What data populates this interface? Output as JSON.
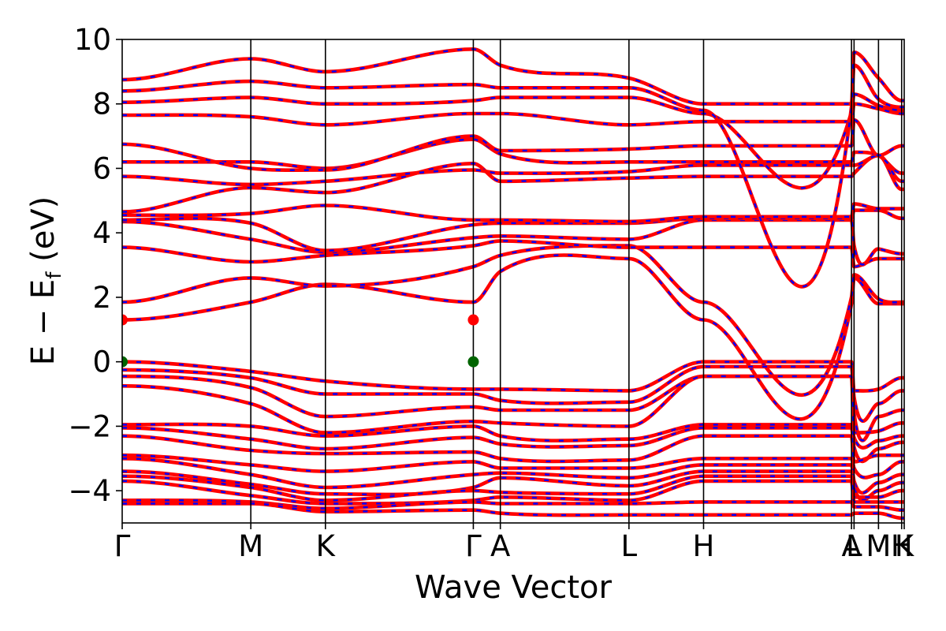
{
  "chart_data": {
    "type": "line",
    "xlabel": "Wave Vector",
    "ylabel": "E − E_f (eV)",
    "ylim": [
      -5,
      10
    ],
    "yticks": [
      -4,
      -2,
      0,
      2,
      4,
      6,
      8,
      10
    ],
    "ytick_labels": [
      "−4",
      "−2",
      "0",
      "2",
      "4",
      "6",
      "8",
      "10"
    ],
    "xlim": [
      0,
      6.08
    ],
    "kpoints": [
      {
        "label": "Γ",
        "x": 0.0
      },
      {
        "label": "M",
        "x": 1.0
      },
      {
        "label": "K",
        "x": 1.58
      },
      {
        "label": "Γ",
        "x": 2.73
      },
      {
        "label": "A",
        "x": 2.94
      },
      {
        "label": "L",
        "x": 3.94
      },
      {
        "label": "H",
        "x": 4.52
      },
      {
        "label": "A",
        "x": 5.67
      },
      {
        "label": "L",
        "x": 5.69
      },
      {
        "label": "M",
        "x": 5.88
      },
      {
        "label": "H",
        "x": 6.06
      },
      {
        "label": "K",
        "x": 6.08
      }
    ],
    "band_colors": {
      "spin_up": "#0000ff",
      "spin_down": "#ff0000"
    },
    "markers": [
      {
        "kind": "cbm",
        "x": 0.0,
        "y": 1.3,
        "color": "#ff0000"
      },
      {
        "kind": "cbm",
        "x": 2.73,
        "y": 1.3,
        "color": "#ff0000"
      },
      {
        "kind": "vbm",
        "x": 0.0,
        "y": 0.0,
        "color": "#006400"
      },
      {
        "kind": "vbm",
        "x": 2.73,
        "y": 0.0,
        "color": "#006400"
      }
    ],
    "series": [
      {
        "values": [
          1.3,
          1.85,
          2.4,
          1.85,
          2.8,
          3.2,
          1.3,
          1.8,
          2.6,
          1.8,
          1.8,
          1.8
        ]
      },
      {
        "values": [
          1.85,
          2.6,
          2.35,
          2.95,
          3.3,
          3.6,
          1.85,
          2.0,
          2.7,
          1.95,
          1.85,
          1.85
        ]
      },
      {
        "values": [
          3.55,
          3.1,
          3.3,
          3.6,
          3.75,
          3.55,
          3.55,
          3.55,
          2.95,
          3.2,
          3.2,
          3.2
        ]
      },
      {
        "values": [
          4.35,
          3.8,
          3.4,
          3.85,
          3.9,
          3.8,
          4.4,
          4.4,
          3.6,
          3.5,
          3.35,
          3.35
        ]
      },
      {
        "values": [
          4.4,
          4.3,
          3.45,
          4.25,
          4.3,
          4.3,
          4.45,
          4.45,
          4.7,
          4.7,
          4.45,
          4.45
        ]
      },
      {
        "values": [
          4.55,
          4.6,
          4.85,
          4.4,
          4.4,
          4.35,
          4.5,
          4.5,
          4.9,
          4.75,
          4.75,
          4.75
        ]
      },
      {
        "values": [
          4.65,
          5.4,
          5.25,
          6.15,
          5.6,
          5.7,
          5.75,
          5.75,
          5.85,
          6.4,
          5.35,
          5.35
        ]
      },
      {
        "values": [
          5.75,
          5.5,
          5.6,
          5.95,
          5.85,
          5.9,
          6.1,
          6.1,
          6.1,
          6.4,
          5.6,
          5.6
        ]
      },
      {
        "values": [
          6.2,
          6.2,
          6.0,
          6.9,
          6.45,
          6.2,
          6.2,
          6.2,
          6.5,
          6.4,
          5.85,
          5.85
        ]
      },
      {
        "values": [
          6.75,
          6.0,
          5.95,
          7.0,
          6.55,
          6.6,
          6.7,
          6.7,
          7.5,
          6.4,
          6.7,
          6.7
        ]
      },
      {
        "values": [
          7.65,
          7.6,
          7.35,
          7.7,
          7.7,
          7.35,
          7.45,
          7.45,
          8.0,
          7.85,
          7.7,
          7.7
        ]
      },
      {
        "values": [
          8.05,
          8.2,
          8.0,
          8.1,
          8.2,
          8.2,
          7.7,
          7.75,
          8.3,
          7.95,
          7.8,
          7.8
        ]
      },
      {
        "values": [
          8.4,
          8.7,
          8.5,
          8.6,
          8.5,
          8.5,
          7.8,
          7.9,
          9.2,
          8.15,
          7.9,
          7.9
        ]
      },
      {
        "values": [
          8.75,
          9.4,
          9.0,
          9.7,
          9.2,
          8.8,
          8.0,
          8.0,
          9.6,
          8.8,
          8.1,
          8.1
        ]
      },
      {
        "values": [
          0.0,
          -0.3,
          -0.6,
          -0.85,
          -0.85,
          -0.9,
          0.0,
          0.0,
          -0.9,
          -0.85,
          -0.5,
          -0.5
        ]
      },
      {
        "values": [
          -0.25,
          -0.5,
          -1.0,
          -1.0,
          -1.2,
          -1.25,
          -0.15,
          -0.15,
          -1.1,
          -1.3,
          -0.9,
          -0.9
        ]
      },
      {
        "values": [
          -0.45,
          -0.8,
          -1.7,
          -1.4,
          -1.5,
          -1.5,
          -0.45,
          -0.45,
          -1.6,
          -1.7,
          -1.5,
          -1.5
        ]
      },
      {
        "values": [
          -0.75,
          -1.3,
          -2.2,
          -1.85,
          -1.9,
          -2.0,
          -0.45,
          -0.45,
          -2.2,
          -2.15,
          -1.9,
          -1.9
        ]
      },
      {
        "values": [
          -1.95,
          -2.0,
          -2.3,
          -2.0,
          -2.3,
          -2.4,
          -1.95,
          -1.95,
          -2.35,
          -2.45,
          -2.3,
          -2.3
        ]
      },
      {
        "values": [
          -2.05,
          -2.4,
          -2.7,
          -2.35,
          -2.55,
          -2.6,
          -2.05,
          -2.05,
          -2.65,
          -2.7,
          -2.5,
          -2.5
        ]
      },
      {
        "values": [
          -2.3,
          -2.75,
          -2.85,
          -2.8,
          -3.0,
          -3.05,
          -2.3,
          -2.3,
          -3.1,
          -2.9,
          -2.9,
          -2.9
        ]
      },
      {
        "values": [
          -2.9,
          -3.2,
          -3.4,
          -3.1,
          -3.3,
          -3.3,
          -3.0,
          -3.0,
          -3.3,
          -3.5,
          -3.1,
          -3.1
        ]
      },
      {
        "values": [
          -3.0,
          -3.5,
          -3.9,
          -3.5,
          -3.45,
          -3.6,
          -3.2,
          -3.2,
          -3.7,
          -3.75,
          -3.5,
          -3.5
        ]
      },
      {
        "values": [
          -3.4,
          -3.8,
          -4.1,
          -3.9,
          -3.6,
          -3.85,
          -3.4,
          -3.4,
          -3.9,
          -4.0,
          -3.75,
          -3.75
        ]
      },
      {
        "values": [
          -3.55,
          -3.9,
          -4.3,
          -4.0,
          -4.05,
          -4.1,
          -3.55,
          -3.55,
          -4.2,
          -4.2,
          -4.0,
          -4.0
        ]
      },
      {
        "values": [
          -3.7,
          -4.15,
          -4.4,
          -4.3,
          -4.2,
          -4.3,
          -3.7,
          -3.7,
          -4.35,
          -4.35,
          -4.35,
          -4.35
        ]
      },
      {
        "values": [
          -4.3,
          -4.35,
          -4.55,
          -4.35,
          -4.4,
          -4.4,
          -4.35,
          -4.35,
          -4.5,
          -4.5,
          -4.6,
          -4.6
        ]
      },
      {
        "values": [
          -4.4,
          -4.4,
          -4.65,
          -4.6,
          -4.7,
          -4.75,
          -4.75,
          -4.75,
          -4.7,
          -4.7,
          -4.85,
          -4.85
        ]
      }
    ]
  }
}
